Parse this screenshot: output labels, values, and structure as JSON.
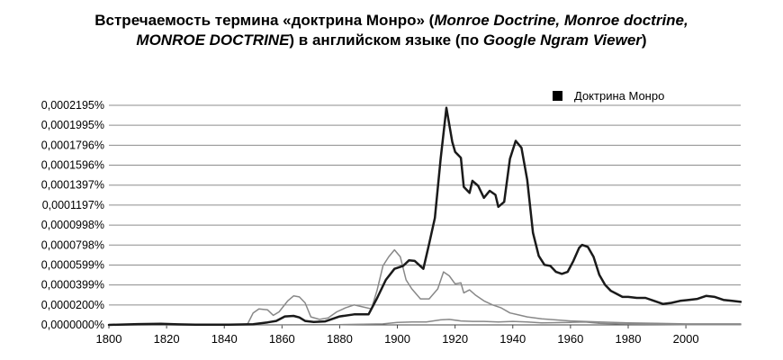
{
  "title": {
    "line1_parts": [
      {
        "text": "Встречаемость термина «доктрина Монро» (",
        "italic": false
      },
      {
        "text": "Monroe Doctrine, Monroe doctrine,",
        "italic": true
      }
    ],
    "line2_parts": [
      {
        "text": "MONROE DOCTRINE",
        "italic": true
      },
      {
        "text": ") в английском языке (по ",
        "italic": false
      },
      {
        "text": "Google Ngram Viewer",
        "italic": true
      },
      {
        "text": ")",
        "italic": false
      }
    ]
  },
  "chart_data": {
    "type": "line",
    "title": "Встречаемость термина «доктрина Монро» (Monroe Doctrine, Monroe doctrine, MONROE DOCTRINE) в английском языке (по Google Ngram Viewer)",
    "xlabel": "",
    "ylabel": "",
    "xlim": [
      1800,
      2019
    ],
    "ylim": [
      0,
      0.0002195
    ],
    "y_ticks": [
      "0,0000000%",
      "0,0000200%",
      "0,0000399%",
      "0,0000599%",
      "0,0000798%",
      "0,0000998%",
      "0,0001197%",
      "0,0001397%",
      "0,0001596%",
      "0,0001796%",
      "0,0001995%",
      "0,0002195%"
    ],
    "x_ticks": [
      "1800",
      "1820",
      "1840",
      "1860",
      "1880",
      "1900",
      "1920",
      "1940",
      "1960",
      "1980",
      "2000"
    ],
    "grid": "horizontal",
    "legend": {
      "position": "top-right",
      "entries": [
        "Доктрина Монро"
      ]
    },
    "series": [
      {
        "name": "Доктрина Монро",
        "color": "#1a1a1a",
        "width": 2.5,
        "x": [
          1800,
          1810,
          1818,
          1824,
          1830,
          1840,
          1850,
          1855,
          1858,
          1861,
          1864,
          1866,
          1868,
          1871,
          1875,
          1880,
          1885,
          1890,
          1893,
          1896,
          1899,
          1902,
          1904,
          1906,
          1909,
          1911,
          1913,
          1915,
          1917,
          1919,
          1920,
          1922,
          1923,
          1925,
          1926,
          1928,
          1930,
          1932,
          1934,
          1935,
          1937,
          1939,
          1941,
          1943,
          1945,
          1947,
          1949,
          1951,
          1953,
          1955,
          1957,
          1959,
          1961,
          1963,
          1964,
          1966,
          1968,
          1970,
          1972,
          1974,
          1976,
          1978,
          1980,
          1983,
          1986,
          1989,
          1992,
          1995,
          1998,
          2001,
          2004,
          2007,
          2010,
          2013,
          2016,
          2019
        ],
        "y": [
          0,
          8e-07,
          1.2e-06,
          5e-07,
          2e-07,
          2e-07,
          6e-07,
          2.5e-06,
          4e-06,
          8.5e-06,
          9e-06,
          7.5e-06,
          4e-06,
          3e-06,
          3.5e-06,
          8.5e-06,
          1.05e-05,
          1.05e-05,
          2.7e-05,
          4.5e-05,
          5.6e-05,
          5.9e-05,
          6.45e-05,
          6.4e-05,
          5.6e-05,
          8.1e-05,
          0.000107,
          0.000166,
          0.000217,
          0.000183,
          0.000173,
          0.000167,
          0.000138,
          0.000132,
          0.000144,
          0.000139,
          0.000127,
          0.000134,
          0.00013,
          0.000118,
          0.000123,
          0.000166,
          0.000184,
          0.000177,
          0.000145,
          9.2e-05,
          6.9e-05,
          6e-05,
          5.9e-05,
          5.3e-05,
          5.1e-05,
          5.3e-05,
          6.4e-05,
          7.7e-05,
          8e-05,
          7.8e-05,
          6.8e-05,
          5e-05,
          4e-05,
          3.4e-05,
          3.1e-05,
          2.8e-05,
          2.8e-05,
          2.7e-05,
          2.7e-05,
          2.4e-05,
          2.1e-05,
          2.2e-05,
          2.4e-05,
          2.5e-05,
          2.6e-05,
          2.9e-05,
          2.8e-05,
          2.5e-05,
          2.4e-05,
          2.3e-05
        ]
      },
      {
        "name": "",
        "color": "#888888",
        "width": 1.5,
        "x": [
          1800,
          1840,
          1848,
          1850,
          1852,
          1855,
          1857,
          1859,
          1862,
          1864,
          1866,
          1868,
          1870,
          1873,
          1876,
          1879,
          1882,
          1885,
          1888,
          1891,
          1893,
          1895,
          1897,
          1899,
          1901,
          1903,
          1905,
          1908,
          1911,
          1914,
          1916,
          1918,
          1920,
          1922,
          1923,
          1925,
          1927,
          1930,
          1933,
          1936,
          1939,
          1942,
          1945,
          1950,
          1960,
          1970,
          1980,
          1990,
          2000,
          2010,
          2019
        ],
        "y": [
          0,
          2e-07,
          5e-07,
          1.2e-05,
          1.6e-05,
          1.5e-05,
          9.5e-06,
          1.3e-05,
          2.4e-05,
          2.9e-05,
          2.8e-05,
          2.2e-05,
          8e-06,
          5.5e-06,
          7e-06,
          1.3e-05,
          1.7e-05,
          2e-05,
          1.8e-05,
          1.6e-05,
          3.5e-05,
          5.9e-05,
          6.8e-05,
          7.5e-05,
          6.8e-05,
          4.5e-05,
          3.6e-05,
          2.6e-05,
          2.6e-05,
          3.6e-05,
          5.3e-05,
          4.9e-05,
          4.1e-05,
          4.2e-05,
          3.2e-05,
          3.5e-05,
          3e-05,
          2.4e-05,
          2e-05,
          1.7e-05,
          1.2e-05,
          1e-05,
          8e-06,
          6e-06,
          4e-06,
          3e-06,
          2e-06,
          1.5e-06,
          1e-06,
          1e-06,
          1e-06
        ]
      },
      {
        "name": "",
        "color": "#888888",
        "width": 1.5,
        "x": [
          1800,
          1850,
          1880,
          1895,
          1900,
          1905,
          1910,
          1915,
          1918,
          1922,
          1926,
          1930,
          1935,
          1940,
          1945,
          1950,
          1960,
          1965,
          1970,
          1980,
          1990,
          2000,
          2010,
          2019
        ],
        "y": [
          0,
          0,
          3e-07,
          1e-06,
          2.5e-06,
          3e-06,
          3e-06,
          5e-06,
          5.5e-06,
          4e-06,
          3.5e-06,
          3.5e-06,
          3e-06,
          3.5e-06,
          3e-06,
          2e-06,
          2.5e-06,
          3e-06,
          1.5e-06,
          8e-07,
          5e-07,
          3e-07,
          3e-07,
          3e-07
        ]
      }
    ]
  }
}
